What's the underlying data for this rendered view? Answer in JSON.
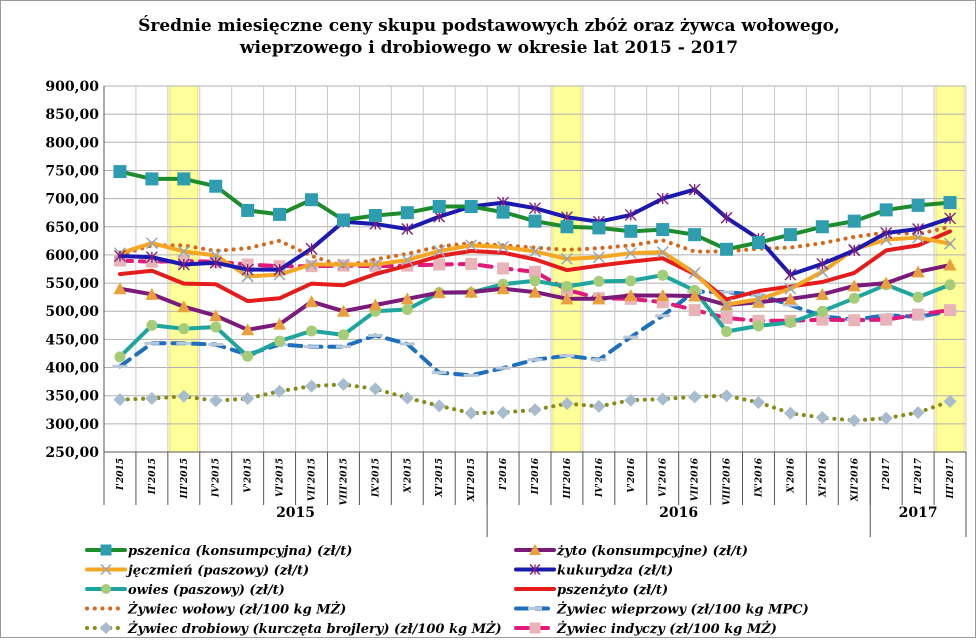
{
  "chart_data": {
    "type": "line",
    "title_line1": "Średnie miesięczne ceny  skupu podstawowych  zbóż oraz żywca wołowego,",
    "title_line2": "wieprzowego i drobiowego w okresie lat 2015  - 2017",
    "ylim": [
      250,
      900
    ],
    "yticks": [
      "900,00",
      "850,00",
      "800,00",
      "750,00",
      "700,00",
      "650,00",
      "600,00",
      "550,00",
      "500,00",
      "450,00",
      "400,00",
      "350,00",
      "300,00",
      "250,00"
    ],
    "categories": [
      "I'2015",
      "II'2015",
      "III'2015",
      "IV'2015",
      "V'2015",
      "VI'2015",
      "VII'2015",
      "VIII'2015",
      "IX'2015",
      "X'2015",
      "XI'2015",
      "XII'2015",
      "I'2016",
      "II'2016",
      "III'2016",
      "IV'2016",
      "V'2016",
      "VI'2016",
      "VII'2016",
      "VIII'2016",
      "IX'2016",
      "X'2016",
      "XI'2016",
      "XII'2016",
      "I'2017",
      "II'2017",
      "III'2017"
    ],
    "years": [
      {
        "label": "2015",
        "start": 0,
        "end": 11
      },
      {
        "label": "2016",
        "start": 12,
        "end": 23
      },
      {
        "label": "2017",
        "start": 24,
        "end": 26
      }
    ],
    "highlight_months": [
      2,
      14,
      26
    ],
    "grid": true,
    "series": [
      {
        "name": "pszenica (konsumpcyjna) (zł/t)",
        "color": "#1e8c2a",
        "marker": "square",
        "markerColor": "#2e9db0",
        "dash": "solid",
        "values": [
          748,
          735,
          735,
          722,
          679,
          672,
          698,
          662,
          670,
          675,
          686,
          686,
          676,
          660,
          650,
          648,
          642,
          645,
          636,
          610,
          622,
          636,
          650,
          660,
          680,
          688,
          693
        ]
      },
      {
        "name": "żyto (konsumpcyjne) (zł/t)",
        "color": "#7a1a7a",
        "marker": "triangle",
        "markerColor": "#e8a03c",
        "dash": "solid",
        "values": [
          540,
          530,
          508,
          492,
          467,
          477,
          517,
          500,
          511,
          522,
          533,
          534,
          540,
          534,
          522,
          522,
          528,
          528,
          527,
          511,
          516,
          522,
          530,
          545,
          550,
          570,
          582
        ]
      },
      {
        "name": "jęczmień (paszowy) (zł/t)",
        "color": "#f5a623",
        "marker": "x",
        "markerColor": "#9aa5b5",
        "dash": "solid",
        "values": [
          603,
          621,
          606,
          599,
          562,
          565,
          583,
          583,
          583,
          591,
          607,
          617,
          614,
          606,
          593,
          596,
          603,
          605,
          568,
          512,
          521,
          540,
          570,
          610,
          627,
          631,
          620
        ]
      },
      {
        "name": "kukurydza (zł/t)",
        "color": "#1a1ab0",
        "marker": "star",
        "markerColor": "#7a1a7a",
        "dash": "solid",
        "values": [
          598,
          596,
          583,
          586,
          574,
          574,
          611,
          659,
          655,
          646,
          668,
          686,
          693,
          683,
          667,
          659,
          671,
          700,
          716,
          666,
          629,
          565,
          584,
          608,
          639,
          646,
          665
        ]
      },
      {
        "name": "owies (paszowy) (zł/t)",
        "color": "#1ea5a0",
        "marker": "circle",
        "markerColor": "#a6cc77",
        "dash": "solid",
        "values": [
          419,
          475,
          469,
          472,
          420,
          447,
          465,
          458,
          500,
          503,
          533,
          533,
          548,
          554,
          544,
          553,
          554,
          564,
          537,
          464,
          474,
          480,
          500,
          523,
          547,
          525,
          547
        ]
      },
      {
        "name": "pszenżyto (zł/t)",
        "color": "#e51c1c",
        "marker": "none",
        "markerColor": "#e51c1c",
        "dash": "solid",
        "values": [
          566,
          572,
          549,
          548,
          518,
          523,
          549,
          546,
          566,
          581,
          598,
          607,
          604,
          592,
          573,
          581,
          588,
          594,
          566,
          521,
          536,
          544,
          552,
          568,
          608,
          617,
          642
        ]
      },
      {
        "name": "Żywiec wołowy (zł/100 kg MŻ)",
        "color": "#d2691e",
        "marker": "none",
        "markerColor": "#d2691e",
        "dash": "dot",
        "values": [
          600,
          617,
          617,
          607,
          612,
          625,
          598,
          580,
          592,
          602,
          615,
          621,
          617,
          613,
          609,
          612,
          617,
          626,
          606,
          606,
          611,
          613,
          621,
          632,
          640,
          637,
          650
        ]
      },
      {
        "name": "Żywiec wieprzowy (zł/100 kg MPC)",
        "color": "#1f6fbf",
        "marker": "dash",
        "markerColor": "#b9c8d8",
        "dash": "dash",
        "values": [
          402,
          443,
          443,
          441,
          423,
          441,
          437,
          437,
          457,
          442,
          391,
          386,
          399,
          414,
          421,
          414,
          454,
          492,
          535,
          534,
          529,
          511,
          491,
          485,
          493,
          490,
          500
        ]
      },
      {
        "name": "Żywiec drobiowy (kurczęta brojlery) (zł/100 kg MŻ)",
        "color": "#8a8a1a",
        "marker": "diamond",
        "markerColor": "#a8bcd0",
        "dash": "dot",
        "values": [
          343,
          345,
          349,
          341,
          345,
          358,
          367,
          370,
          362,
          346,
          332,
          319,
          320,
          325,
          336,
          331,
          342,
          344,
          348,
          350,
          338,
          319,
          311,
          306,
          310,
          320,
          340
        ]
      },
      {
        "name": "Żywiec indyczy (zł/100 kg MŻ)",
        "color": "#e0197a",
        "marker": "square",
        "markerColor": "#e8b4b8",
        "dash": "dash",
        "values": [
          590,
          588,
          589,
          588,
          583,
          580,
          580,
          581,
          580,
          581,
          583,
          584,
          576,
          570,
          538,
          523,
          522,
          516,
          502,
          488,
          483,
          483,
          485,
          484,
          485,
          494,
          502
        ]
      }
    ]
  }
}
